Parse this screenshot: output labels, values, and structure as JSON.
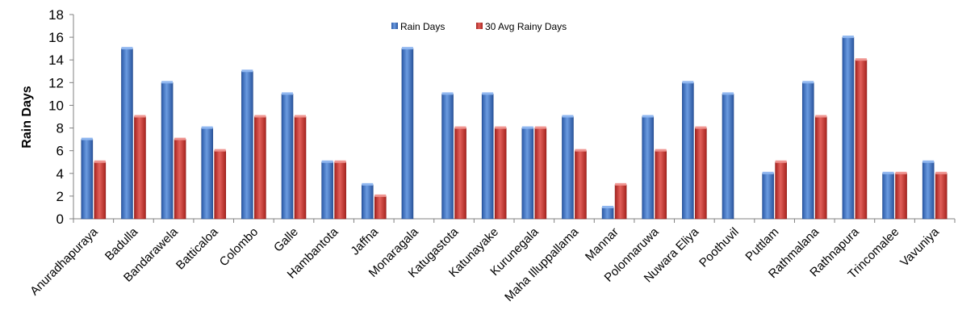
{
  "chart_data": {
    "type": "bar",
    "title": "",
    "xlabel": "",
    "ylabel": "Rain Days",
    "ylim": [
      0,
      18
    ],
    "yticks": [
      0,
      2,
      4,
      6,
      8,
      10,
      12,
      14,
      16,
      18
    ],
    "grid": false,
    "legend_position": "top-center",
    "categories": [
      "Anuradhapuraya",
      "Badulla",
      "Bandarawela",
      "Batticaloa",
      "Colombo",
      "Galle",
      "Hambantota",
      "Jaffna",
      "Monaragala",
      "Katugastota",
      "Katunayake",
      "Kurunegala",
      "Maha Illuppallama",
      "Mannar",
      "Polonnaruwa",
      "Nuwara Eliya",
      "Poothuvil",
      "Puttlam",
      "Rathmalana",
      "Rathnapura",
      "Trincomalee",
      "Vavuniya"
    ],
    "series": [
      {
        "name": "Rain Days",
        "color": "#3a6fc4",
        "values": [
          7,
          15,
          12,
          8,
          13,
          11,
          5,
          3,
          15,
          11,
          11,
          8,
          9,
          1,
          9,
          12,
          11,
          4,
          12,
          16,
          4,
          5
        ]
      },
      {
        "name": "30 Avg Rainy Days",
        "color": "#c8322e",
        "values": [
          5,
          9,
          7,
          6,
          9,
          9,
          5,
          2,
          null,
          8,
          8,
          8,
          6,
          3,
          6,
          8,
          null,
          5,
          9,
          14,
          4,
          4
        ]
      }
    ]
  }
}
